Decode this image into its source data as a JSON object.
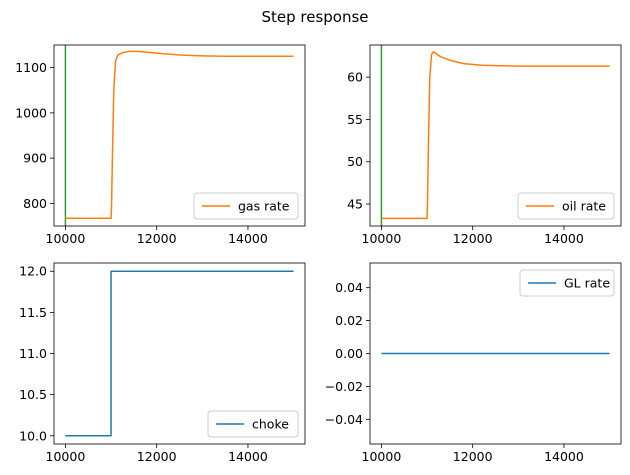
{
  "figure": {
    "title": "Step response"
  },
  "chart_data": [
    {
      "id": "gas",
      "type": "line",
      "title": "",
      "xlabel": "",
      "ylabel": "",
      "xlim": [
        9750,
        15250
      ],
      "ylim": [
        750,
        1150
      ],
      "xticks": [
        10000,
        12000,
        14000
      ],
      "yticks": [
        800,
        900,
        1000,
        1100
      ],
      "ytick_labels": [
        "800",
        "900",
        "1000",
        "1100"
      ],
      "legend_position": "lower-right",
      "vline": {
        "x": 10000,
        "color": "#2ca02c"
      },
      "series": [
        {
          "name": "gas rate",
          "color": "#ff7f0e",
          "x": [
            10000,
            11000,
            11010,
            11030,
            11060,
            11100,
            11150,
            11250,
            11400,
            11550,
            11700,
            12000,
            12500,
            13000,
            13500,
            14000,
            15000
          ],
          "y": [
            767,
            767,
            790,
            900,
            1050,
            1115,
            1128,
            1133,
            1136,
            1136,
            1135,
            1132,
            1128,
            1126,
            1125,
            1125,
            1125
          ]
        }
      ]
    },
    {
      "id": "oil",
      "type": "line",
      "title": "",
      "xlabel": "",
      "ylabel": "",
      "xlim": [
        9750,
        15250
      ],
      "ylim": [
        42.4,
        63.8
      ],
      "xticks": [
        10000,
        12000,
        14000
      ],
      "yticks": [
        45,
        50,
        55,
        60
      ],
      "ytick_labels": [
        "45",
        "50",
        "55",
        "60"
      ],
      "legend_position": "lower-right",
      "vline": {
        "x": 10000,
        "color": "#2ca02c"
      },
      "series": [
        {
          "name": "oil rate",
          "color": "#ff7f0e",
          "x": [
            10000,
            11000,
            11010,
            11030,
            11060,
            11100,
            11140,
            11200,
            11300,
            11500,
            11800,
            12200,
            12600,
            13000,
            13500,
            14000,
            15000
          ],
          "y": [
            43.3,
            43.3,
            45,
            52,
            60,
            62.7,
            63.0,
            62.8,
            62.4,
            62.0,
            61.6,
            61.4,
            61.35,
            61.3,
            61.3,
            61.3,
            61.3
          ]
        }
      ]
    },
    {
      "id": "choke",
      "type": "line",
      "title": "",
      "xlabel": "",
      "ylabel": "",
      "xlim": [
        9750,
        15250
      ],
      "ylim": [
        9.9,
        12.1
      ],
      "xticks": [
        10000,
        12000,
        14000
      ],
      "yticks": [
        10.0,
        10.5,
        11.0,
        11.5,
        12.0
      ],
      "ytick_labels": [
        "10.0",
        "10.5",
        "11.0",
        "11.5",
        "12.0"
      ],
      "legend_position": "lower-right",
      "series": [
        {
          "name": "choke",
          "color": "#1f77b4",
          "x": [
            10000,
            11000,
            11000,
            15000
          ],
          "y": [
            10,
            10,
            12,
            12
          ]
        }
      ]
    },
    {
      "id": "gl",
      "type": "line",
      "title": "",
      "xlabel": "",
      "ylabel": "",
      "xlim": [
        9750,
        15250
      ],
      "ylim": [
        -0.055,
        0.055
      ],
      "xticks": [
        10000,
        12000,
        14000
      ],
      "yticks": [
        -0.04,
        -0.02,
        0.0,
        0.02,
        0.04
      ],
      "ytick_labels": [
        "−0.04",
        "−0.02",
        "0.00",
        "0.02",
        "0.04"
      ],
      "legend_position": "upper-right",
      "series": [
        {
          "name": "GL rate",
          "color": "#1f77b4",
          "x": [
            10000,
            15000
          ],
          "y": [
            0,
            0
          ]
        }
      ]
    }
  ]
}
